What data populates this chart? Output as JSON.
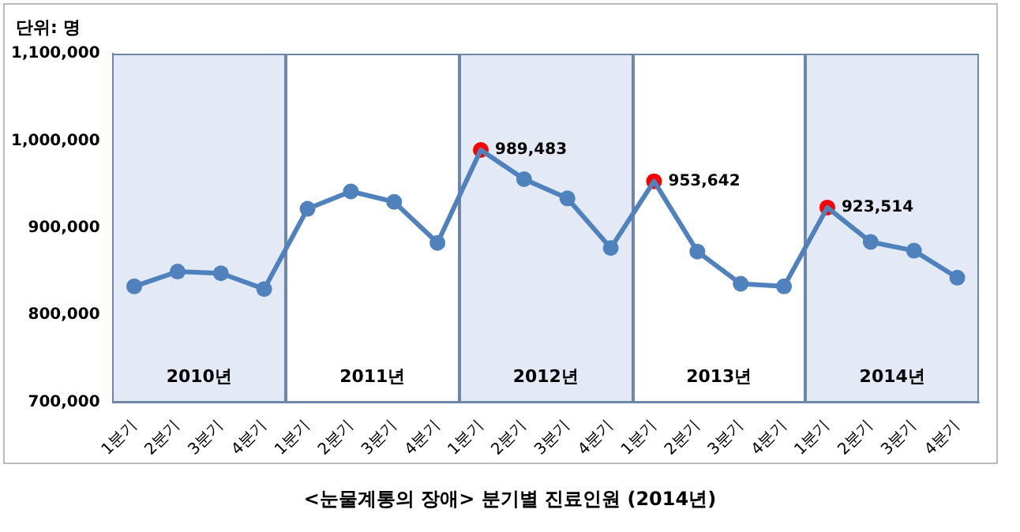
{
  "chart_data": {
    "type": "line",
    "title": "<눈물계통의 장애> 분기별 진료인원 (2014년)",
    "categories": [
      "1분기",
      "2분기",
      "3분기",
      "4분기",
      "1분기",
      "2분기",
      "3분기",
      "4분기",
      "1분기",
      "2분기",
      "3분기",
      "4분기",
      "1분기",
      "2분기",
      "3분기",
      "4분기",
      "1분기",
      "2분기",
      "3분기",
      "4분기"
    ],
    "series": [
      {
        "color": "#4f81bd",
        "colors": [
          "#4f81bd",
          "#4f81bd",
          "#4f81bd",
          "#4f81bd",
          "#4f81bd",
          "#4f81bd",
          "#4f81bd",
          "#4f81bd",
          "#ff0000",
          "#4f81bd",
          "#4f81bd",
          "#4f81bd",
          "#ff0000",
          "#4f81bd",
          "#4f81bd",
          "#4f81bd",
          "#ff0000",
          "#4f81bd",
          "#4f81bd",
          "#4f81bd"
        ],
        "values": [
          833000,
          850000,
          848000,
          830000,
          922000,
          942000,
          930000,
          883000,
          989483,
          956000,
          934000,
          877000,
          953642,
          873000,
          836000,
          833000,
          923514,
          884000,
          874000,
          843000
        ],
        "value_labels": [
          null,
          null,
          null,
          null,
          null,
          null,
          null,
          null,
          "989,483",
          null,
          null,
          null,
          "953,642",
          null,
          null,
          null,
          "923,514",
          null,
          null,
          null
        ]
      }
    ],
    "ylim": [
      700000,
      1100000
    ],
    "yticks": [
      {
        "value": 700000,
        "label": "700,000"
      },
      {
        "value": 800000,
        "label": "800,000"
      },
      {
        "value": 900000,
        "label": "900,000"
      },
      {
        "value": 1000000,
        "label": "1,000,000"
      },
      {
        "value": 1100000,
        "label": "1,100,000"
      }
    ],
    "annotations": [
      "단위: 명",
      "2010년",
      "2011년",
      "2012년",
      "2013년",
      "2014년"
    ],
    "marker": "circle",
    "line_style": "solid",
    "grid": false,
    "legend": false
  }
}
